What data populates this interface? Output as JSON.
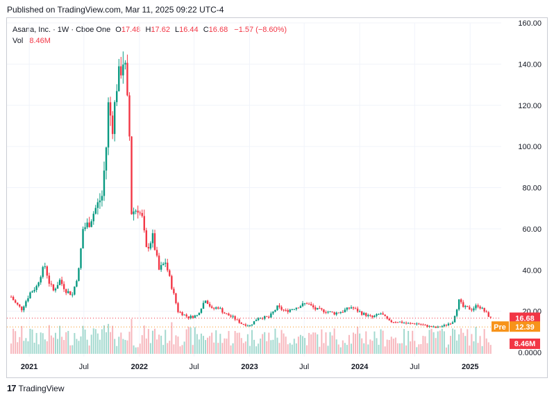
{
  "header": {
    "published": "Published on TradingView.com, Mar 11, 2025 09:22 UTC-4"
  },
  "legend": {
    "symbol": "Asana, Inc. · 1W · Cboe One",
    "o_label": "O",
    "o_value": "17.48",
    "h_label": "H",
    "h_value": "17.62",
    "l_label": "L",
    "l_value": "16.44",
    "c_label": "C",
    "c_value": "16.68",
    "change": "−1.57 (−8.60%)",
    "vol_label": "Vol",
    "vol_value": "8.46M"
  },
  "footer": {
    "brand": "TradingView"
  },
  "colors": {
    "up": "#089981",
    "down": "#f23645",
    "pre": "#f7931a",
    "grid": "#f0f3fa",
    "axis_text": "#131722"
  },
  "chart_data": {
    "type": "candlestick",
    "title": "Asana, Inc. · 1W · Cboe One",
    "x_ticks": [
      "2021",
      "Jul",
      "2022",
      "Jul",
      "2023",
      "Jul",
      "2024",
      "Jul",
      "2025"
    ],
    "x_tick_dates": [
      "2021-01-01",
      "2021-07-01",
      "2022-01-01",
      "2022-07-01",
      "2023-01-01",
      "2023-07-01",
      "2024-01-01",
      "2024-07-01",
      "2025-01-01"
    ],
    "y_ticks": [
      "160.00",
      "140.00",
      "120.00",
      "100.00",
      "80.00",
      "60.00",
      "40.00",
      "20.00"
    ],
    "y_tick_values": [
      160,
      140,
      120,
      100,
      80,
      60,
      40,
      20
    ],
    "ylim": [
      0,
      160
    ],
    "volume_axis_label": "0.0000",
    "price_series_name": "Close",
    "close_series": [
      [
        "2020-11-02",
        27
      ],
      [
        "2020-11-16",
        24
      ],
      [
        "2020-12-07",
        21
      ],
      [
        "2021-01-04",
        29
      ],
      [
        "2021-01-25",
        32
      ],
      [
        "2021-02-08",
        38
      ],
      [
        "2021-02-22",
        42
      ],
      [
        "2021-03-08",
        34
      ],
      [
        "2021-03-22",
        30
      ],
      [
        "2021-04-12",
        35
      ],
      [
        "2021-05-03",
        30
      ],
      [
        "2021-05-24",
        28
      ],
      [
        "2021-06-14",
        40
      ],
      [
        "2021-06-28",
        60
      ],
      [
        "2021-07-19",
        63
      ],
      [
        "2021-08-09",
        70
      ],
      [
        "2021-08-30",
        76
      ],
      [
        "2021-09-13",
        100
      ],
      [
        "2021-09-20",
        120
      ],
      [
        "2021-10-04",
        110
      ],
      [
        "2021-10-18",
        130
      ],
      [
        "2021-11-08",
        142
      ],
      [
        "2021-11-15",
        137
      ],
      [
        "2021-11-29",
        105
      ],
      [
        "2021-12-06",
        68
      ],
      [
        "2021-12-27",
        70
      ],
      [
        "2022-01-10",
        65
      ],
      [
        "2022-01-24",
        50
      ],
      [
        "2022-02-14",
        56
      ],
      [
        "2022-03-07",
        40
      ],
      [
        "2022-03-28",
        44
      ],
      [
        "2022-04-18",
        32
      ],
      [
        "2022-05-09",
        20
      ],
      [
        "2022-06-13",
        17
      ],
      [
        "2022-07-11",
        18
      ],
      [
        "2022-08-08",
        26
      ],
      [
        "2022-08-29",
        21
      ],
      [
        "2022-09-19",
        22
      ],
      [
        "2022-10-10",
        19
      ],
      [
        "2022-11-07",
        17
      ],
      [
        "2022-12-05",
        14
      ],
      [
        "2023-01-02",
        13
      ],
      [
        "2023-01-30",
        17
      ],
      [
        "2023-03-06",
        17
      ],
      [
        "2023-04-03",
        22
      ],
      [
        "2023-05-01",
        20
      ],
      [
        "2023-06-05",
        22
      ],
      [
        "2023-07-10",
        24
      ],
      [
        "2023-08-07",
        21
      ],
      [
        "2023-09-11",
        20
      ],
      [
        "2023-10-09",
        19
      ],
      [
        "2023-11-06",
        20
      ],
      [
        "2023-12-04",
        22
      ],
      [
        "2024-01-08",
        19
      ],
      [
        "2024-02-12",
        17
      ],
      [
        "2024-03-11",
        19
      ],
      [
        "2024-04-08",
        15
      ],
      [
        "2024-05-06",
        15
      ],
      [
        "2024-06-10",
        14
      ],
      [
        "2024-07-08",
        14
      ],
      [
        "2024-08-05",
        13
      ],
      [
        "2024-09-09",
        12
      ],
      [
        "2024-10-07",
        13
      ],
      [
        "2024-11-04",
        15
      ],
      [
        "2024-11-25",
        25
      ],
      [
        "2024-12-09",
        22
      ],
      [
        "2025-01-06",
        21
      ],
      [
        "2025-01-27",
        23
      ],
      [
        "2025-02-17",
        20
      ],
      [
        "2025-03-10",
        16.68
      ]
    ],
    "markers": [
      {
        "label": "16.68",
        "value": 16.68,
        "color": "#f23645"
      },
      {
        "label": "Pre",
        "value": 12.39,
        "text": "12.39",
        "color": "#f7931a"
      },
      {
        "label": "8.46M",
        "value": 8.46,
        "color": "#f23645"
      }
    ]
  }
}
